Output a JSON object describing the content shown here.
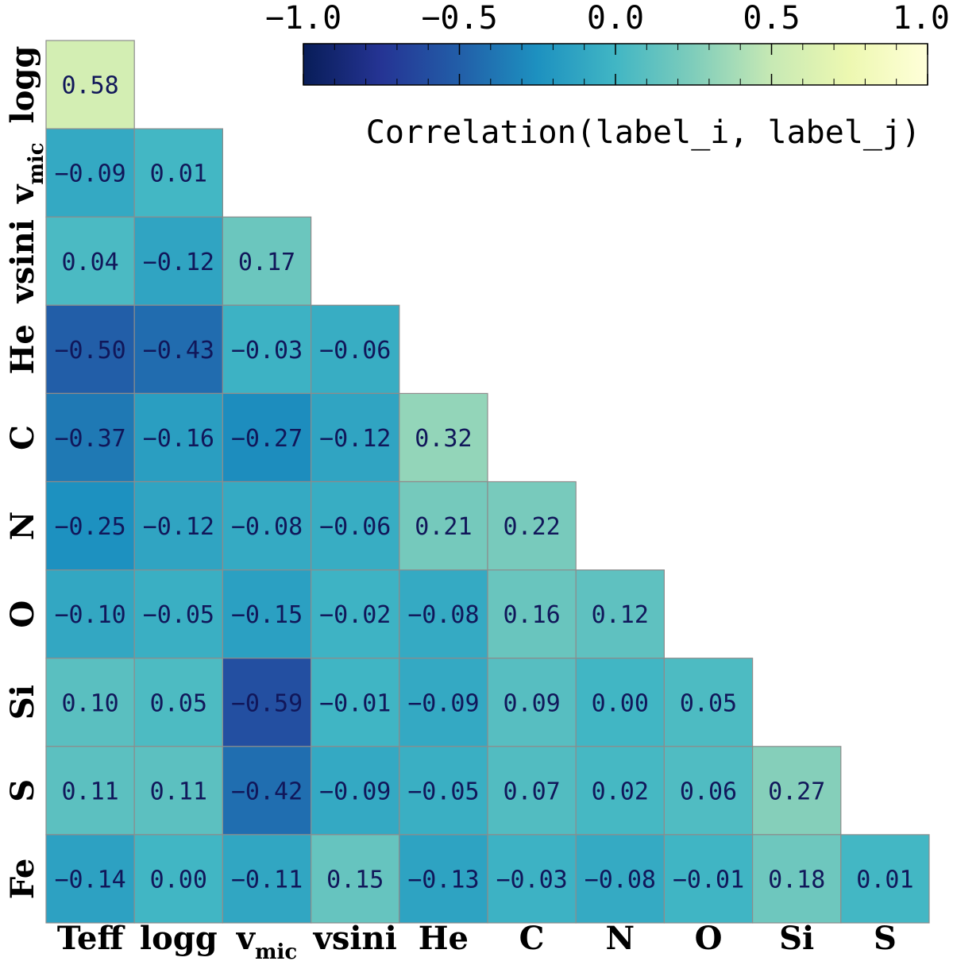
{
  "chart_data": {
    "type": "heatmap",
    "title": "",
    "x_labels": [
      "Teff",
      "logg",
      "v_mic",
      "vsini",
      "He",
      "C",
      "N",
      "O",
      "Si",
      "S"
    ],
    "y_labels": [
      "logg",
      "v_mic",
      "vsini",
      "He",
      "C",
      "N",
      "O",
      "Si",
      "S",
      "Fe"
    ],
    "values": [
      [
        0.58
      ],
      [
        -0.09,
        0.01
      ],
      [
        0.04,
        -0.12,
        0.17
      ],
      [
        -0.5,
        -0.43,
        -0.03,
        -0.06
      ],
      [
        -0.37,
        -0.16,
        -0.27,
        -0.12,
        0.32
      ],
      [
        -0.25,
        -0.12,
        -0.08,
        -0.06,
        0.21,
        0.22
      ],
      [
        -0.1,
        -0.05,
        -0.15,
        -0.02,
        -0.08,
        0.16,
        0.12
      ],
      [
        0.1,
        0.05,
        -0.59,
        -0.01,
        -0.09,
        0.09,
        0.0,
        0.05
      ],
      [
        0.11,
        0.11,
        -0.42,
        -0.09,
        -0.05,
        0.07,
        0.02,
        0.06,
        0.27
      ],
      [
        -0.14,
        0.0,
        -0.11,
        0.15,
        -0.13,
        -0.03,
        -0.08,
        -0.01,
        0.18,
        0.01
      ]
    ],
    "colorbar": {
      "label": "Correlation(label_i, label_j)",
      "range": [
        -1.0,
        1.0
      ],
      "ticks": [
        -1.0,
        -0.5,
        0.0,
        0.5,
        1.0
      ],
      "tick_labels": [
        "−1.0",
        "−0.5",
        "0.0",
        "0.5",
        "1.0"
      ],
      "position": "top-right",
      "colormap": [
        "#081d58",
        "#253494",
        "#225ea8",
        "#1d91c0",
        "#41b6c4",
        "#7fcdbb",
        "#c7e9b4",
        "#edf8b1",
        "#ffffd9"
      ]
    },
    "cell_text_color": "#11175a",
    "cell_border_color": "#8c8c8c"
  }
}
